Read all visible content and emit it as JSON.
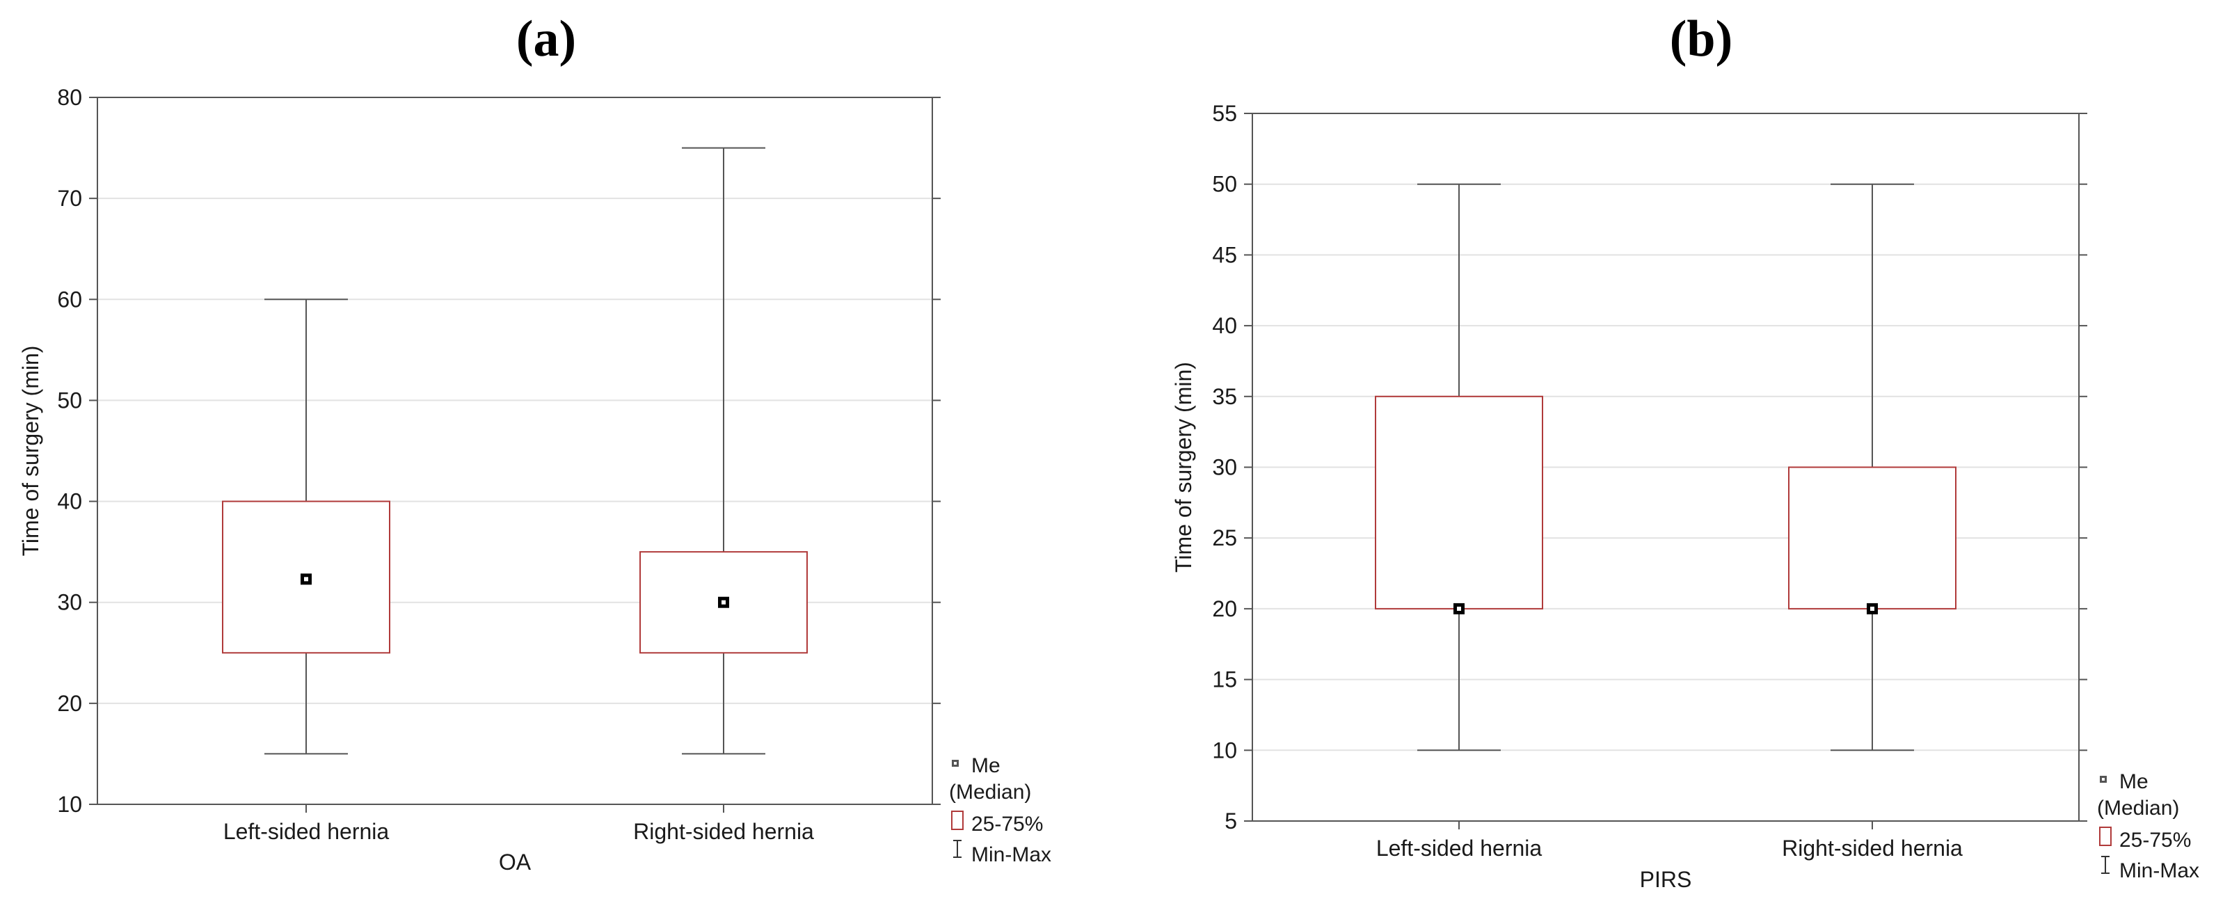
{
  "chart_data": [
    {
      "type": "box",
      "title": "(a)",
      "panel_letter": "a",
      "xlabel": "OA",
      "ylabel": "Time of surgery (min)",
      "ylim": [
        10,
        80
      ],
      "yticks": [
        10,
        20,
        30,
        40,
        50,
        60,
        70,
        80
      ],
      "grid": true,
      "categories": [
        "Left-sided hernia",
        "Right-sided hernia"
      ],
      "series": [
        {
          "name": "Left-sided hernia",
          "min": 15,
          "q1": 25,
          "median": 32.3,
          "q3": 40,
          "max": 60
        },
        {
          "name": "Right-sided hernia",
          "min": 15,
          "q1": 25,
          "median": 30,
          "q3": 35,
          "max": 75
        }
      ],
      "legend": {
        "position": "bottom-right",
        "items": [
          "Me",
          "(Median)",
          "25-75%",
          "Min-Max"
        ]
      }
    },
    {
      "type": "box",
      "title": "(b)",
      "panel_letter": "b",
      "xlabel": "PIRS",
      "ylabel": "Time of surgery (min)",
      "ylim": [
        5,
        55
      ],
      "yticks": [
        5,
        10,
        15,
        20,
        25,
        30,
        35,
        40,
        45,
        50,
        55
      ],
      "grid": true,
      "categories": [
        "Left-sided hernia",
        "Right-sided hernia"
      ],
      "series": [
        {
          "name": "Left-sided hernia",
          "min": 10,
          "q1": 20,
          "median": 20,
          "q3": 35,
          "max": 50
        },
        {
          "name": "Right-sided hernia",
          "min": 10,
          "q1": 20,
          "median": 20,
          "q3": 30,
          "max": 50
        }
      ],
      "legend": {
        "position": "bottom-right",
        "items": [
          "Me",
          "(Median)",
          "25-75%",
          "Min-Max"
        ]
      }
    }
  ],
  "colors": {
    "box_edge": "#b03a3a",
    "whisker": "#555555",
    "axis": "#555555",
    "grid": "#e2e2e2",
    "median_marker": "#000000",
    "text": "#1a1a1a"
  }
}
